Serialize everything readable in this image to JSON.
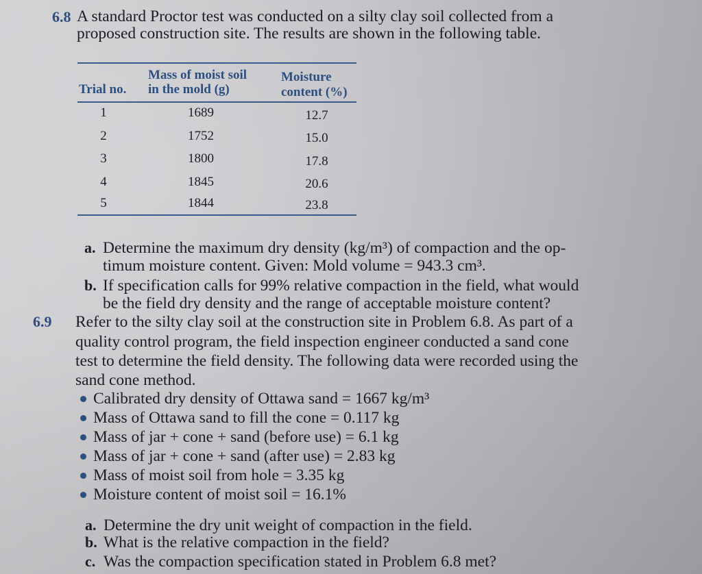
{
  "problem_6_8": {
    "number": "6.8",
    "intro": [
      "A standard Proctor test was conducted on a silty clay soil collected from a",
      "proposed construction site. The results are shown in the following table."
    ],
    "table": {
      "headers": [
        "Trial no.",
        "Mass of moist soil",
        "in the mold (g)",
        "Moisture",
        "content (%)"
      ],
      "rows": [
        [
          "1",
          "1689",
          "12.7"
        ],
        [
          "2",
          "1752",
          "15.0"
        ],
        [
          "3",
          "1800",
          "17.8"
        ],
        [
          "4",
          "1845",
          "20.6"
        ],
        [
          "5",
          "1844",
          "23.8"
        ]
      ]
    },
    "parts": [
      {
        "label": "a.",
        "lines": [
          "Determine the maximum dry density (kg/m³) of compaction and the op-",
          "timum moisture content. Given: Mold volume = 943.3 cm³."
        ]
      },
      {
        "label": "b.",
        "lines": [
          "If specification calls for 99% relative compaction in the field, what would",
          "be the field dry density and the range of acceptable moisture content?"
        ]
      }
    ]
  },
  "problem_6_9": {
    "number": "6.9",
    "intro": [
      "Refer to the silty clay soil at the construction site in Problem 6.8. As part of a",
      "quality control program, the field inspection engineer conducted a sand cone",
      "test to determine the field density. The following data were recorded using the",
      "sand cone method."
    ],
    "bullets": [
      "Calibrated dry density of Ottawa sand = 1667 kg/m³",
      "Mass of Ottawa sand to fill the cone = 0.117 kg",
      "Mass of jar + cone + sand (before use) = 6.1 kg",
      "Mass of jar + cone + sand (after use) = 2.83 kg",
      "Mass of moist soil from hole = 3.35 kg",
      "Moisture content of moist soil = 16.1%"
    ],
    "parts": [
      {
        "label": "a.",
        "text": "Determine the dry unit weight of compaction in the field."
      },
      {
        "label": "b.",
        "text": "What is the relative compaction in the field?"
      },
      {
        "label": "c.",
        "text": "Was the compaction specification stated in Problem 6.8 met?"
      }
    ]
  },
  "colors": {
    "accent_blue": "#2d4f80",
    "text": "#1d1c22"
  }
}
